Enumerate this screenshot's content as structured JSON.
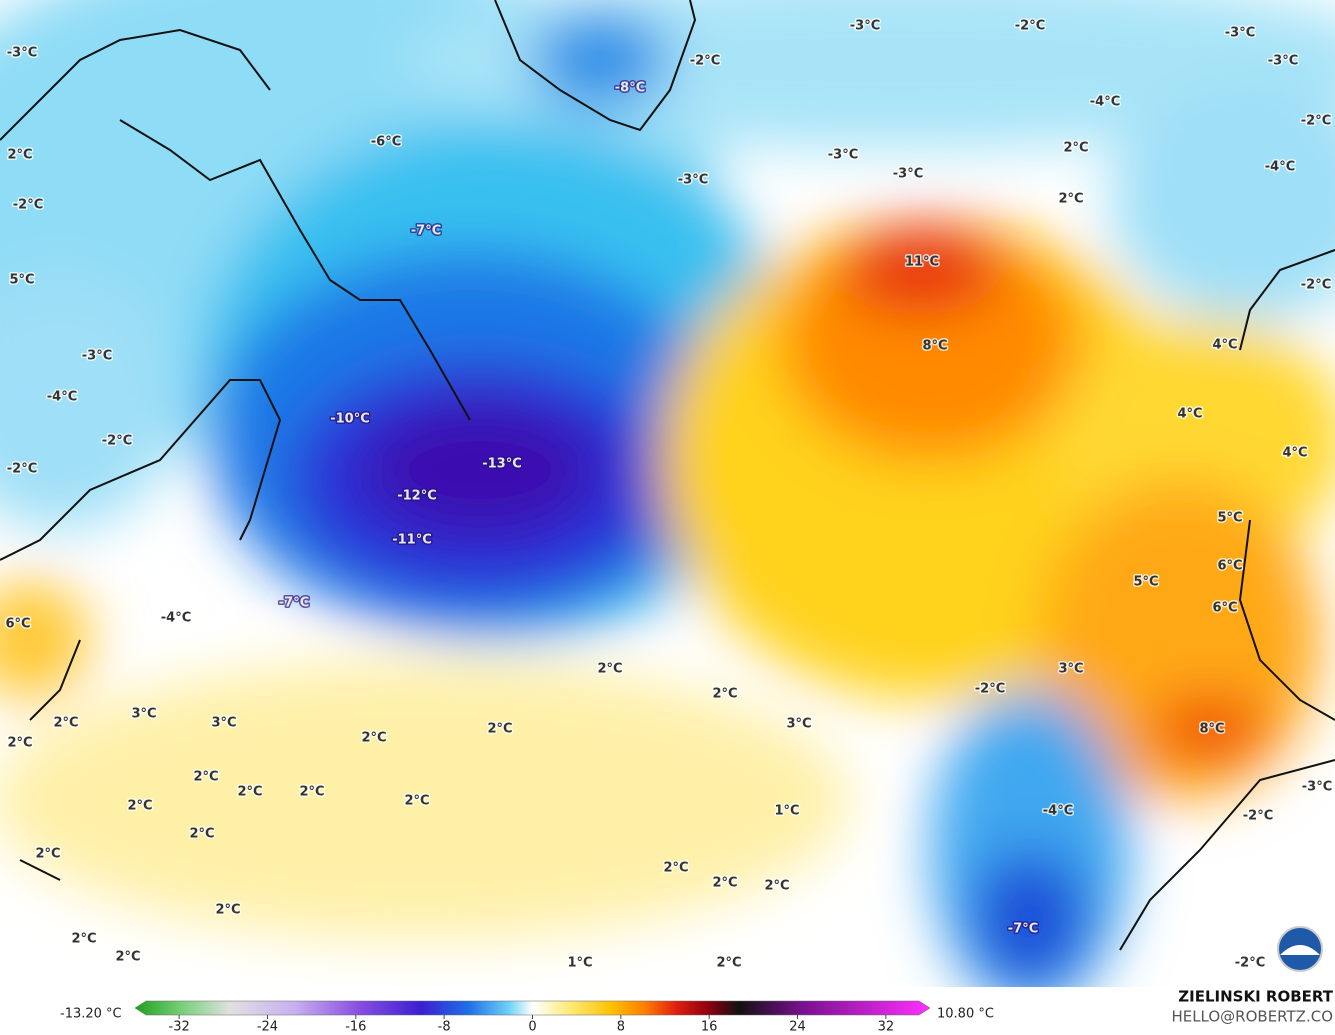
{
  "map": {
    "labels": [
      "-3°C",
      "-3°C",
      "-2°C",
      "-3°C",
      "-3°C",
      "-2°C",
      "-8°C",
      "-4°C",
      "-2°C",
      "-6°C",
      "-3°C",
      "-3°C",
      "-3°C",
      "2°C",
      "-4°C",
      "2°C",
      "-2°C",
      "2°C",
      "-7°C",
      "11°C",
      "5°C",
      "-2°C",
      "8°C",
      "4°C",
      "-3°C",
      "-4°C",
      "4°C",
      "-10°C",
      "-2°C",
      "4°C",
      "-13°C",
      "-2°C",
      "-12°C",
      "5°C",
      "-11°C",
      "6°C",
      "5°C",
      "-7°C",
      "-4°C",
      "6°C",
      "6°C",
      "2°C",
      "3°C",
      "-2°C",
      "2°C",
      "3°C",
      "3°C",
      "2°C",
      "3°C",
      "2°C",
      "8°C",
      "2°C",
      "2°C",
      "2°C",
      "2°C",
      "2°C",
      "2°C",
      "2°C",
      "1°C",
      "-4°C",
      "-3°C",
      "-2°C",
      "2°C",
      "2°C",
      "2°C",
      "2°C",
      "2°C",
      "2°C",
      "-7°C",
      "2°C",
      "2°C",
      "1°C",
      "2°C",
      "-2°C"
    ]
  },
  "colorbar": {
    "min_label": "-13.20 °C",
    "max_label": "10.80 °C",
    "range": [
      -35,
      35
    ],
    "ticks": [
      -32,
      -24,
      -16,
      -8,
      0,
      8,
      16,
      24,
      32
    ]
  },
  "credit": {
    "name": "ZIELINSKI ROBERT",
    "email": "HELLO@ROBERTZ.CO"
  }
}
